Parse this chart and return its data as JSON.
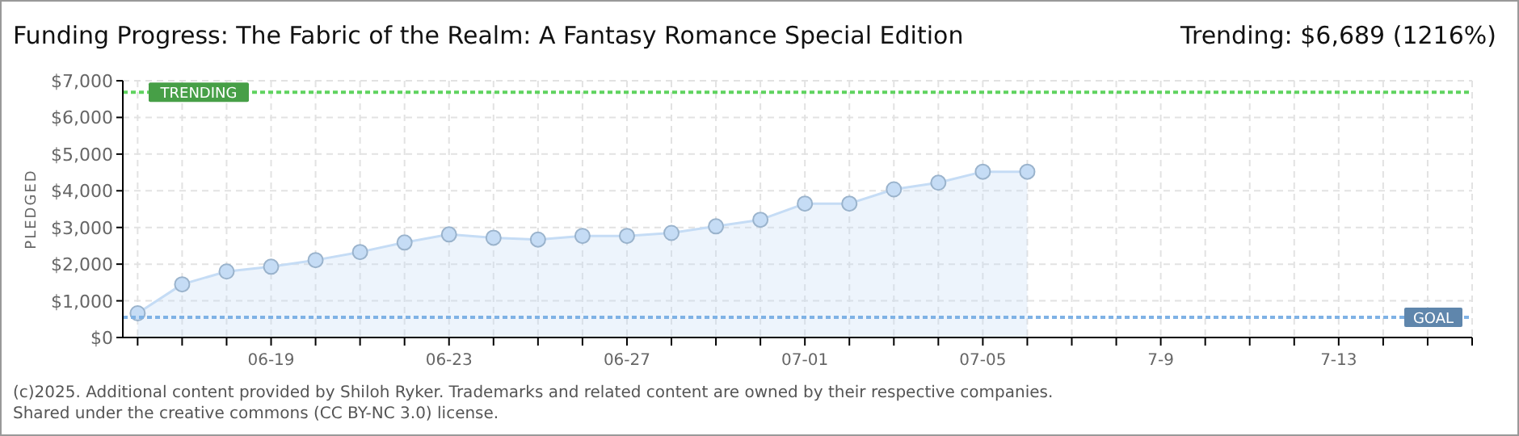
{
  "chart_data": {
    "type": "area",
    "title": "Funding Progress: The Fabric of the Realm: A Fantasy Romance Special Edition",
    "subtitle": "Trending:  $6,689 (1216%)",
    "ylabel": "PLEDGED",
    "x": [
      "2025-06-16",
      "2025-06-17",
      "2025-06-18",
      "2025-06-19",
      "2025-06-20",
      "2025-06-21",
      "2025-06-22",
      "2025-06-23",
      "2025-06-24",
      "2025-06-25",
      "2025-06-26",
      "2025-06-27",
      "2025-06-28",
      "2025-06-29",
      "2025-06-30",
      "2025-07-01",
      "2025-07-02",
      "2025-07-03",
      "2025-07-04",
      "2025-07-05",
      "2025-07-06"
    ],
    "series": [
      {
        "color": "#c5dcf5",
        "values": [
          660,
          1450,
          1800,
          1930,
          2110,
          2330,
          2590,
          2810,
          2720,
          2670,
          2770,
          2770,
          2850,
          3030,
          3210,
          3650,
          3650,
          4040,
          4220,
          4520,
          4520
        ]
      }
    ],
    "xlim": [
      "2025-06-15T16:00",
      "2025-07-16"
    ],
    "xticks": [
      {
        "value": "2025-06-16",
        "label": null
      },
      {
        "value": "2025-06-17",
        "label": null
      },
      {
        "value": "2025-06-18",
        "label": null
      },
      {
        "value": "2025-06-19",
        "label": "06-19"
      },
      {
        "value": "2025-06-20",
        "label": null
      },
      {
        "value": "2025-06-21",
        "label": null
      },
      {
        "value": "2025-06-22",
        "label": null
      },
      {
        "value": "2025-06-23",
        "label": "06-23"
      },
      {
        "value": "2025-06-24",
        "label": null
      },
      {
        "value": "2025-06-25",
        "label": null
      },
      {
        "value": "2025-06-26",
        "label": null
      },
      {
        "value": "2025-06-27",
        "label": "06-27"
      },
      {
        "value": "2025-06-28",
        "label": null
      },
      {
        "value": "2025-06-29",
        "label": null
      },
      {
        "value": "2025-06-30",
        "label": null
      },
      {
        "value": "2025-07-01",
        "label": "07-01"
      },
      {
        "value": "2025-07-02",
        "label": null
      },
      {
        "value": "2025-07-03",
        "label": null
      },
      {
        "value": "2025-07-04",
        "label": null
      },
      {
        "value": "2025-07-05",
        "label": "07-05"
      },
      {
        "value": "2025-07-06",
        "label": null
      },
      {
        "value": "2025-07-07",
        "label": null
      },
      {
        "value": "2025-07-08",
        "label": null
      },
      {
        "value": "2025-07-09",
        "label": "7-9"
      },
      {
        "value": "2025-07-10",
        "label": null
      },
      {
        "value": "2025-07-11",
        "label": null
      },
      {
        "value": "2025-07-12",
        "label": null
      },
      {
        "value": "2025-07-13",
        "label": "7-13"
      },
      {
        "value": "2025-07-14",
        "label": null
      },
      {
        "value": "2025-07-15",
        "label": null
      },
      {
        "value": "2025-07-16",
        "label": null
      }
    ],
    "ylim": [
      0,
      7000
    ],
    "yticks": [
      {
        "value": 0,
        "label": "$0"
      },
      {
        "value": 1000,
        "label": "$1,000"
      },
      {
        "value": 2000,
        "label": "$2,000"
      },
      {
        "value": 3000,
        "label": "$3,000"
      },
      {
        "value": 4000,
        "label": "$4,000"
      },
      {
        "value": 5000,
        "label": "$5,000"
      },
      {
        "value": 6000,
        "label": "$6,000"
      },
      {
        "value": 7000,
        "label": "$7,000"
      }
    ],
    "grid": true,
    "marker": "circle",
    "line_style": "solid",
    "ref_lines": [
      {
        "axis": "y",
        "value": 6689,
        "label": "TRENDING",
        "color": "#5fd35f",
        "line_style": "dotted"
      },
      {
        "axis": "y",
        "value": 550,
        "label": "GOAL",
        "color": "#7fb2e5",
        "line_style": "dotted"
      }
    ],
    "annotations": [
      "(c)2025. Additional content provided by Shiloh Ryker. Trademarks and related content are owned by their respective companies.",
      "Shared under the creative commons (CC BY-NC 3.0) license."
    ]
  }
}
